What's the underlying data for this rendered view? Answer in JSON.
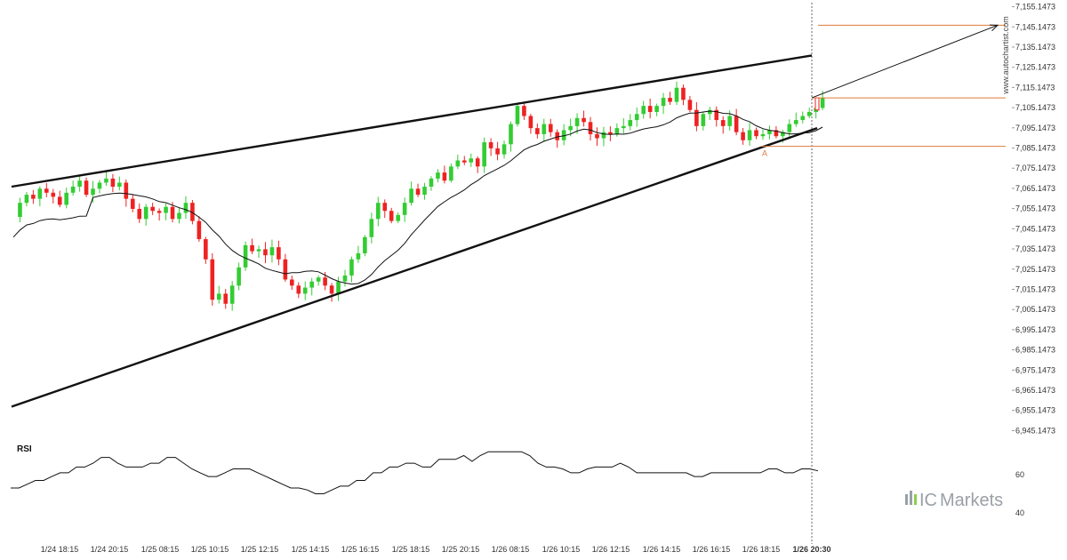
{
  "chart_data": {
    "type": "candlestick",
    "price_axis": {
      "ticks": [
        "7,155.1473",
        "7,145.1473",
        "7,135.1473",
        "7,125.1473",
        "7,115.1473",
        "7,105.1473",
        "7,095.1473",
        "7,085.1473",
        "7,075.1473",
        "7,065.1473",
        "7,055.1473",
        "7,045.1473",
        "7,035.1473",
        "7,025.1473",
        "7,015.1473",
        "7,005.1473",
        "6,995.1473",
        "6,985.1473",
        "6,975.1473",
        "6,965.1473",
        "6,955.1473",
        "6,945.1473"
      ],
      "ylim": [
        6943.1473,
        7157.1473
      ]
    },
    "time_axis": {
      "ticks": [
        "1/24 18:15",
        "1/24 20:15",
        "1/25 08:15",
        "1/25 10:15",
        "1/25 12:15",
        "1/25 14:15",
        "1/25 16:15",
        "1/25 18:15",
        "1/25 20:15",
        "1/26 08:15",
        "1/26 10:15",
        "1/26 12:15",
        "1/26 14:15",
        "1/26 16:15",
        "1/26 18:15",
        "1/26 20:30"
      ],
      "highlight": "1/26 20:30"
    },
    "colors": {
      "up": "#33cc33",
      "down": "#ee2222",
      "line": "#111111",
      "accent": "#e07a3a"
    },
    "closes": [
      7051,
      7058,
      7062,
      7060,
      7065,
      7063,
      7061,
      7057,
      7063,
      7066,
      7069,
      7062,
      7065,
      7068,
      7070,
      7066,
      7068,
      7060,
      7055,
      7050,
      7056,
      7054,
      7053,
      7056,
      7050,
      7053,
      7058,
      7049,
      7040,
      7030,
      7010,
      7013,
      7008,
      7017,
      7026,
      7037,
      7034,
      7035,
      7032,
      7036,
      7030,
      7020,
      7017,
      7013,
      7016,
      7019,
      7021,
      7017,
      7013,
      7019,
      7022,
      7030,
      7033,
      7041,
      7050,
      7058,
      7054,
      7049,
      7052,
      7058,
      7065,
      7062,
      7066,
      7070,
      7073,
      7069,
      7076,
      7079,
      7078,
      7080,
      7076,
      7088,
      7085,
      7082,
      7087,
      7097,
      7106,
      7101,
      7095,
      7092,
      7097,
      7093,
      7089,
      7094,
      7096,
      7100,
      7098,
      7092,
      7090,
      7093,
      7092,
      7095,
      7096,
      7099,
      7102,
      7106,
      7103,
      7106,
      7110,
      7108,
      7115,
      7109,
      7104,
      7096,
      7102,
      7104,
      7099,
      7096,
      7101,
      7093,
      7089,
      7094,
      7091,
      7092,
      7094,
      7091,
      7093,
      7097,
      7099,
      7101,
      7103,
      7105,
      7110
    ],
    "rsi": {
      "label": "RSI",
      "ticks": [
        "60",
        "40"
      ],
      "ylim": [
        30,
        75
      ],
      "values": [
        53,
        53,
        55,
        57,
        57,
        59,
        61,
        61,
        64,
        64,
        66,
        69,
        69,
        66,
        64,
        64,
        64,
        66,
        66,
        69,
        69,
        66,
        63,
        61,
        59,
        59,
        61,
        63,
        63,
        63,
        61,
        59,
        57,
        55,
        53,
        53,
        52,
        50,
        50,
        52,
        54,
        54,
        57,
        57,
        61,
        61,
        64,
        64,
        66,
        66,
        64,
        64,
        68,
        68,
        68,
        70,
        67,
        70,
        72,
        72,
        72,
        72,
        72,
        70,
        66,
        64,
        64,
        63,
        61,
        61,
        63,
        64,
        64,
        64,
        66,
        64,
        61,
        61,
        61,
        61,
        61,
        61,
        61,
        59,
        59,
        61,
        61,
        61,
        61,
        61,
        61,
        61,
        63,
        63,
        61,
        61,
        63,
        63,
        62
      ]
    },
    "annotations": {
      "channel_upper": {
        "from": [
          "1/24 18:15",
          7066
        ],
        "to": [
          "1/26 20:30",
          7131
        ]
      },
      "channel_lower": {
        "from": [
          "1/24 18:15",
          6957
        ],
        "to": [
          "1/26 20:30",
          7095
        ]
      },
      "moving_average": "Moving average line",
      "forecast_arrow": {
        "from": 7110,
        "to": 7146
      },
      "levels": [
        7146,
        7110,
        7086
      ],
      "point_label": "A"
    }
  },
  "watermark": "www.autochartist.com",
  "brand": {
    "prefix": "IC",
    "suffix": "Markets"
  }
}
